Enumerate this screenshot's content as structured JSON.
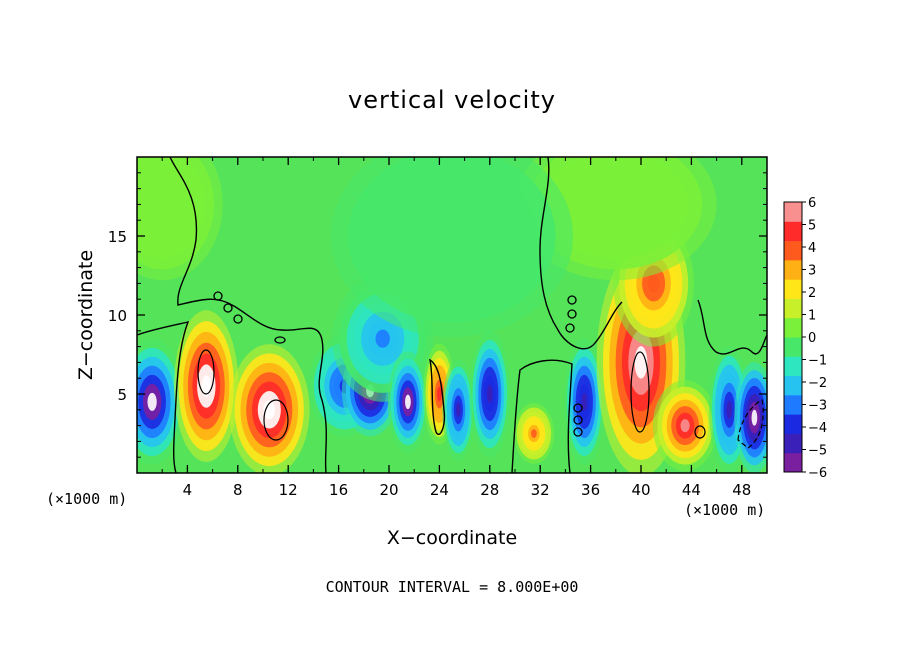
{
  "chart_data": {
    "type": "heatmap",
    "title": "vertical velocity",
    "xlabel": "X−coordinate",
    "ylabel": "Z−coordinate",
    "x_unit_left": "(×1000 m)",
    "x_unit_right": "(×1000 m)",
    "footer": "CONTOUR INTERVAL = 8.000E+00",
    "x_ticks": [
      4,
      8,
      12,
      16,
      20,
      24,
      28,
      32,
      36,
      40,
      44,
      48
    ],
    "x_tick_labels": [
      "4",
      "8",
      "12",
      "16",
      "20",
      "24",
      "28",
      "32",
      "36",
      "40",
      "44",
      "48"
    ],
    "y_ticks": [
      5,
      10,
      15
    ],
    "y_tick_labels": [
      "5",
      "10",
      "15"
    ],
    "xlim": [
      0,
      50
    ],
    "ylim": [
      0,
      20
    ],
    "colorbar": {
      "labels": [
        "6",
        "5",
        "4",
        "3",
        "2",
        "1",
        "0",
        "−1",
        "−2",
        "−3",
        "−4",
        "−5",
        "−6"
      ],
      "range": [
        -6,
        6
      ],
      "colors": [
        "#7a1fa0",
        "#3a1fb8",
        "#1b2ae0",
        "#1e7bff",
        "#26c3f0",
        "#2ee6c0",
        "#47e86a",
        "#7af03a",
        "#c8f02a",
        "#ffe619",
        "#ffb014",
        "#ff5a1e",
        "#ff2a2a",
        "#f89090"
      ]
    },
    "cells": [
      {
        "x": 1.2,
        "z": 4.5,
        "sx": 1.6,
        "sz": 2.5,
        "v": -6
      },
      {
        "x": 5.5,
        "z": 5.5,
        "sx": 1.6,
        "sz": 3.0,
        "v": 7
      },
      {
        "x": 10.5,
        "z": 4.0,
        "sx": 2.0,
        "sz": 2.6,
        "v": 7
      },
      {
        "x": 16.5,
        "z": 5.5,
        "sx": 1.8,
        "sz": 2.0,
        "v": -4
      },
      {
        "x": 18.5,
        "z": 5.2,
        "sx": 1.4,
        "sz": 1.8,
        "v": -6.5
      },
      {
        "x": 19.5,
        "z": 8.5,
        "sx": 2.5,
        "sz": 2.5,
        "v": -3
      },
      {
        "x": 21.5,
        "z": 4.5,
        "sx": 1.0,
        "sz": 2.0,
        "v": -6
      },
      {
        "x": 24.0,
        "z": 5.0,
        "sx": 0.8,
        "sz": 2.0,
        "v": 4.5
      },
      {
        "x": 25.5,
        "z": 4.0,
        "sx": 0.8,
        "sz": 2.0,
        "v": -4.5
      },
      {
        "x": 28.0,
        "z": 5.0,
        "sx": 1.0,
        "sz": 2.5,
        "v": -5
      },
      {
        "x": 31.5,
        "z": 2.5,
        "sx": 1.0,
        "sz": 1.2,
        "v": 3.5
      },
      {
        "x": 35.5,
        "z": 4.5,
        "sx": 1.0,
        "sz": 2.5,
        "v": -5
      },
      {
        "x": 40.0,
        "z": 7.0,
        "sx": 2.2,
        "sz": 4.5,
        "v": 6.5
      },
      {
        "x": 41.0,
        "z": 12.0,
        "sx": 2.0,
        "sz": 2.5,
        "v": 4
      },
      {
        "x": 43.5,
        "z": 3.0,
        "sx": 1.6,
        "sz": 1.8,
        "v": 5.5
      },
      {
        "x": 47.0,
        "z": 4.0,
        "sx": 1.0,
        "sz": 2.5,
        "v": -4.5
      },
      {
        "x": 49.0,
        "z": 3.5,
        "sx": 1.0,
        "sz": 2.2,
        "v": -6.5
      },
      {
        "x": 2.0,
        "z": 17.0,
        "sx": 3.0,
        "sz": 3.0,
        "v": 0.7
      },
      {
        "x": 38.0,
        "z": 17.0,
        "sx": 5.0,
        "sz": 3.0,
        "v": 0.6
      },
      {
        "x": 25.0,
        "z": 15.0,
        "sx": 6.0,
        "sz": 4.0,
        "v": -0.8
      }
    ]
  }
}
